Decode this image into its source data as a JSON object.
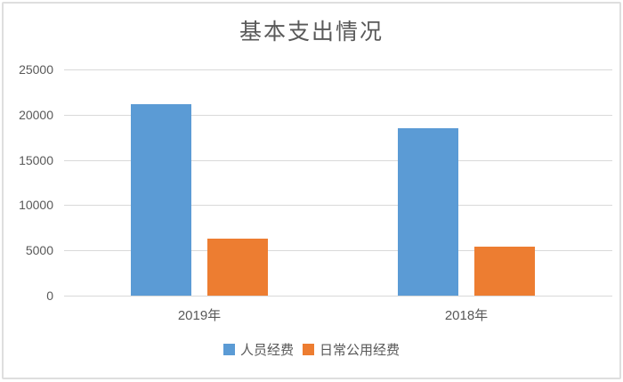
{
  "chart_data": {
    "type": "bar",
    "title": "基本支出情况",
    "categories": [
      "2019年",
      "2018年"
    ],
    "series": [
      {
        "name": "人员经费",
        "color": "#5b9bd5",
        "values": [
          21200,
          18500
        ]
      },
      {
        "name": "日常公用经费",
        "color": "#ed7d31",
        "values": [
          6300,
          5400
        ]
      }
    ],
    "ylim": [
      0,
      25000
    ],
    "ytick_step": 5000,
    "ytick_labels": [
      "0",
      "5000",
      "10000",
      "15000",
      "20000",
      "25000"
    ],
    "grid": true,
    "legend_position": "bottom"
  },
  "colors": {
    "gridline": "#d9d9d9",
    "text": "#595959",
    "frame_border": "#dedede",
    "background": "#ffffff"
  }
}
